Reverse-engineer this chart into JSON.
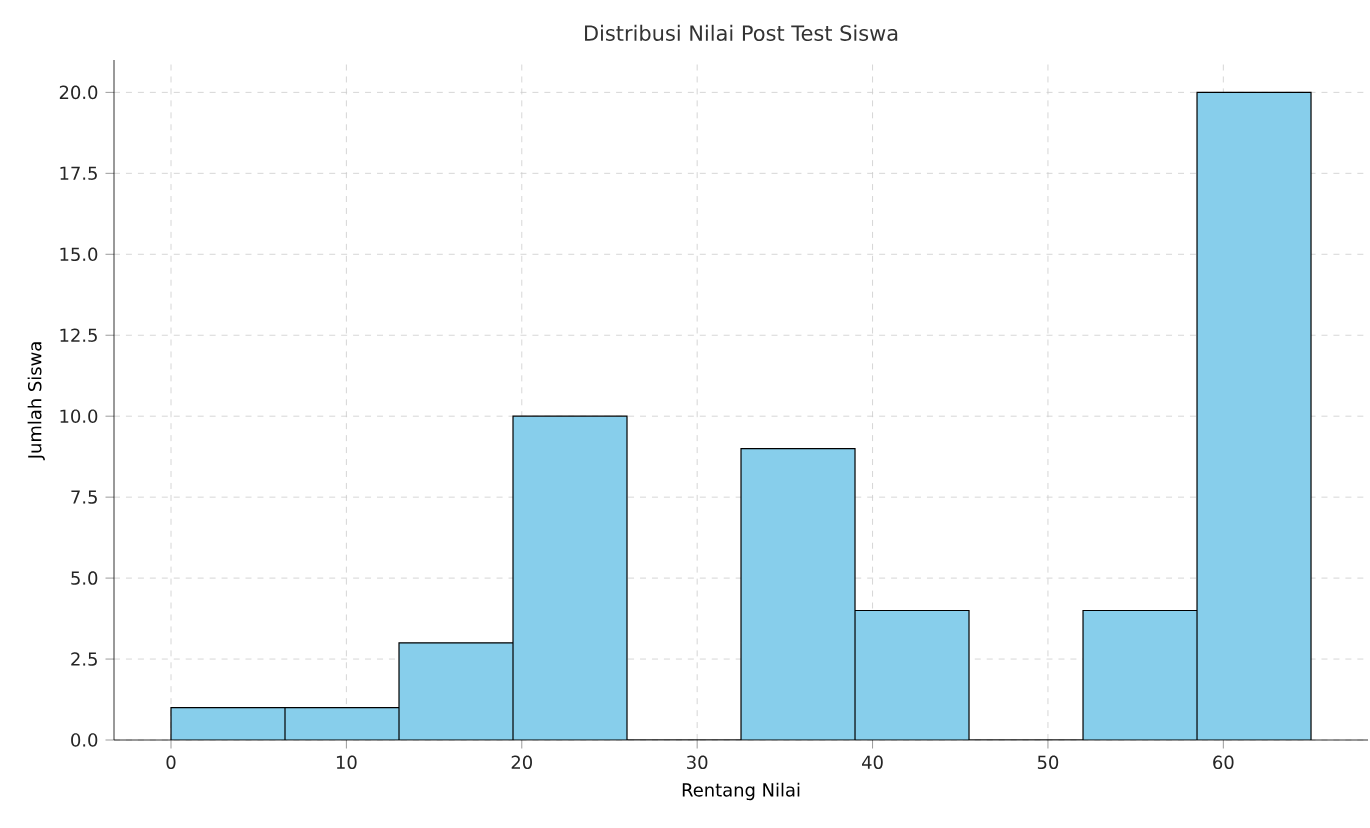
{
  "chart_data": {
    "type": "histogram",
    "title": "Distribusi Nilai Post Test Siswa",
    "xlabel": "Rentang Nilai",
    "ylabel": "Jumlah Siswa",
    "bins": [
      0,
      6.5,
      13,
      19.5,
      26,
      32.5,
      39,
      45.5,
      52,
      58.5,
      65
    ],
    "values": [
      1,
      1,
      3,
      10,
      0,
      9,
      4,
      0,
      4,
      20
    ],
    "color": "#87ceeb",
    "xlim": [
      -3.25,
      68.25
    ],
    "ylim": [
      0,
      21
    ],
    "xticks": [
      0,
      10,
      20,
      30,
      40,
      50,
      60
    ],
    "yticks": [
      {
        "value": 0,
        "label": "0.0"
      },
      {
        "value": 2.5,
        "label": "2.5"
      },
      {
        "value": 5,
        "label": "5.0"
      },
      {
        "value": 7.5,
        "label": "7.5"
      },
      {
        "value": 10,
        "label": "10.0"
      },
      {
        "value": 12.5,
        "label": "12.5"
      },
      {
        "value": 15,
        "label": "15.0"
      },
      {
        "value": 17.5,
        "label": "17.5"
      },
      {
        "value": 20,
        "label": "20.0"
      }
    ],
    "grid": true
  }
}
